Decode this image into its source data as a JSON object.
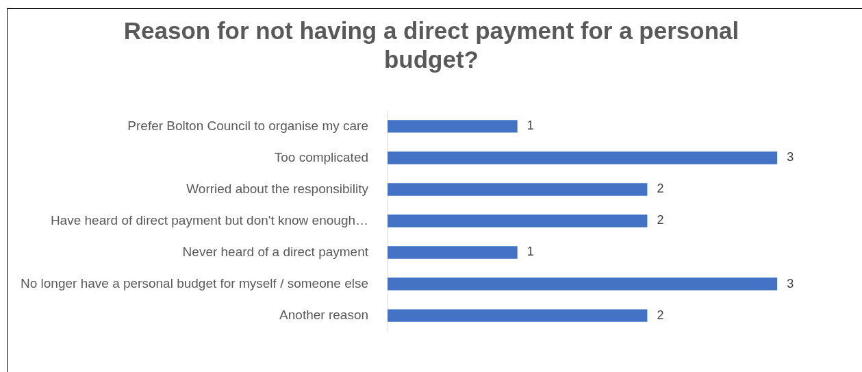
{
  "chart_data": {
    "type": "bar",
    "orientation": "horizontal",
    "title": "Reason for not having a direct payment for a personal budget?",
    "categories": [
      "Prefer Bolton Council to organise my care",
      "Too complicated",
      "Worried about the responsibility",
      "Have heard of direct payment but don't know enough…",
      "Never heard of a direct payment",
      "No longer have a personal budget for myself / someone else",
      "Another reason"
    ],
    "values": [
      1,
      3,
      2,
      2,
      1,
      3,
      2
    ],
    "color": "#4472c4",
    "data_labels": true,
    "legend": false
  }
}
